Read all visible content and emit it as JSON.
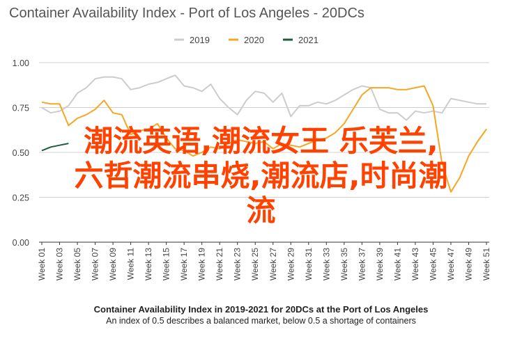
{
  "chart_data": {
    "type": "line",
    "title": "Container Availability Index - Port of Los Angeles - 20DCs",
    "xlabel": "",
    "ylabel": "",
    "ylim": [
      0,
      1
    ],
    "yticks": [
      "0.00",
      "0.25",
      "0.50",
      "0.75",
      "1.00"
    ],
    "ytick_values": [
      0,
      0.25,
      0.5,
      0.75,
      1.0
    ],
    "xtick_labels": [
      "Week 01",
      "Week 03",
      "Week 05",
      "Week 07",
      "Week 09",
      "Week 11",
      "Week 13",
      "Week 15",
      "Week 17",
      "Week 19",
      "Week 21",
      "Week 23",
      "Week 25",
      "Week 27",
      "Week 29",
      "Week 31",
      "Week 33",
      "Week 35",
      "Week 37",
      "Week 39",
      "Week 41",
      "Week 43",
      "Week 45",
      "Week 47",
      "Week 49",
      "Week 51"
    ],
    "grid": true,
    "legend_position": "top",
    "series": [
      {
        "name": "2019",
        "color": "#cccccc",
        "values": [
          0.75,
          0.72,
          0.73,
          0.76,
          0.83,
          0.86,
          0.91,
          0.92,
          0.92,
          0.91,
          0.85,
          0.86,
          0.88,
          0.89,
          0.91,
          0.93,
          0.87,
          0.86,
          0.84,
          0.88,
          0.8,
          0.75,
          0.71,
          0.79,
          0.84,
          0.83,
          0.78,
          0.83,
          0.7,
          0.76,
          0.76,
          0.78,
          0.77,
          0.79,
          0.82,
          0.85,
          0.87,
          0.86,
          0.74,
          0.72,
          0.72,
          0.68,
          0.73,
          0.72,
          0.73,
          0.72,
          0.8,
          0.79,
          0.78,
          0.77,
          0.77
        ]
      },
      {
        "name": "2020",
        "color": "#f5a623",
        "values": [
          0.78,
          0.77,
          0.77,
          0.65,
          0.69,
          0.71,
          0.74,
          0.79,
          0.72,
          0.71,
          0.6,
          0.62,
          0.63,
          0.66,
          0.58,
          0.52,
          0.51,
          0.48,
          0.5,
          0.53,
          0.52,
          0.55,
          0.57,
          0.56,
          0.55,
          0.56,
          0.52,
          0.55,
          0.54,
          0.53,
          0.55,
          0.57,
          0.58,
          0.61,
          0.66,
          0.74,
          0.82,
          0.86,
          0.86,
          0.86,
          0.85,
          0.85,
          0.86,
          0.87,
          0.76,
          0.44,
          0.28,
          0.36,
          0.48,
          0.56,
          0.63
        ]
      },
      {
        "name": "2021",
        "color": "#1b5e3b",
        "values": [
          0.51,
          0.53,
          0.54,
          0.55
        ]
      }
    ]
  },
  "overlay_text": [
    "潮流英语,潮流女王 乐芙兰,",
    "六哲潮流串烧,潮流店,时尚潮",
    "流"
  ],
  "caption": {
    "title": "Container Availability Index in 2019-2021 for 20DCs at the Port of Los Angeles",
    "subtitle": "An index of 0.5 describes a balanced market, below 0.5 a shortage of containers"
  }
}
